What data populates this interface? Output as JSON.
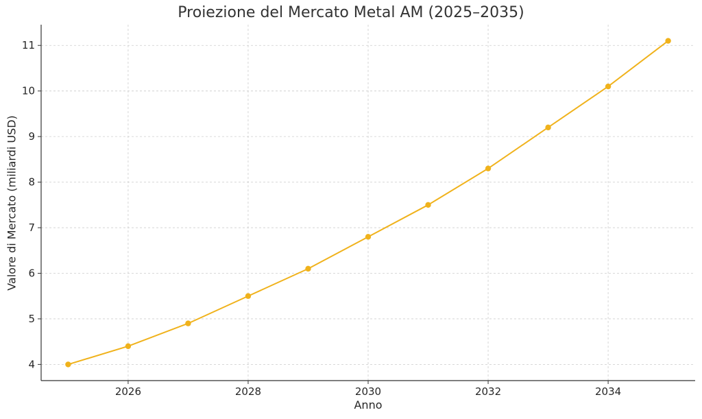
{
  "chart_data": {
    "type": "line",
    "title": "Proiezione del Mercato Metal AM (2025–2035)",
    "xlabel": "Anno",
    "ylabel": "Valore di Mercato (miliardi USD)",
    "x": [
      2025,
      2026,
      2027,
      2028,
      2029,
      2030,
      2031,
      2032,
      2033,
      2034,
      2035
    ],
    "series": [
      {
        "values": [
          4.0,
          4.4,
          4.9,
          5.5,
          6.1,
          6.8,
          7.5,
          8.3,
          9.2,
          10.1,
          11.1
        ],
        "color": "#f0b21b",
        "marker": "circle"
      }
    ],
    "xticks": [
      "2026",
      "2028",
      "2030",
      "2032",
      "2034"
    ],
    "yticks": [
      "4",
      "5",
      "6",
      "7",
      "8",
      "9",
      "10",
      "11"
    ],
    "xlim": [
      2024.55,
      2035.45
    ],
    "ylim": [
      3.645,
      11.455
    ],
    "grid": true,
    "grid_style": "dashed"
  }
}
